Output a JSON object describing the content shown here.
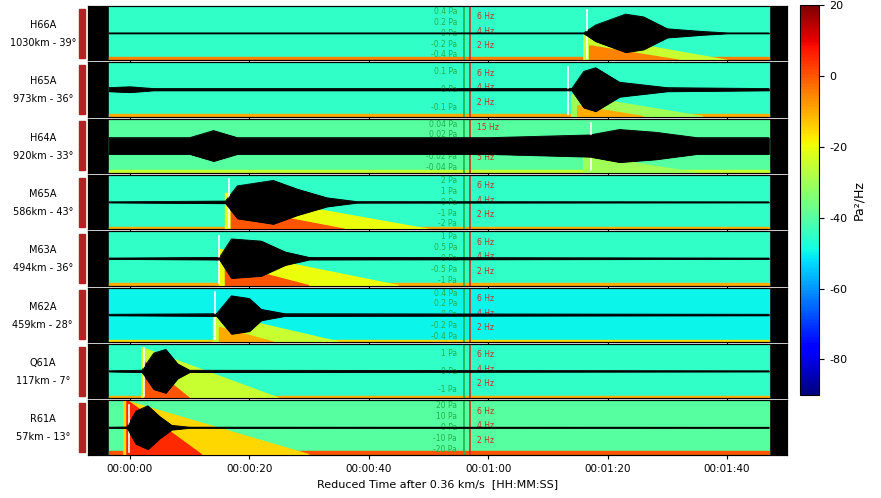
{
  "chart_data": {
    "type": "spectrogram_stack",
    "xlabel": "Reduced Time after 0.36 km/s  [HH:MM:SS]",
    "xlim": [
      -7,
      110
    ],
    "xticks": [
      {
        "value": 0,
        "label": "00:00:00"
      },
      {
        "value": 20,
        "label": "00:00:20"
      },
      {
        "value": 40,
        "label": "00:00:40"
      },
      {
        "value": 60,
        "label": "00:01:00"
      },
      {
        "value": 80,
        "label": "00:01:20"
      },
      {
        "value": 100,
        "label": "00:01:40"
      }
    ],
    "tick_labels": "x",
    "data_window": [
      -3.5,
      107
    ],
    "reference_lines": [
      {
        "time": 56,
        "color": "#22b14c"
      },
      {
        "time": 57,
        "color": "#d03020"
      }
    ],
    "colorbar": {
      "label": "Pa²/Hz",
      "range": [
        -90,
        20
      ],
      "ticks": [
        -80,
        -60,
        -40,
        -20,
        0,
        20
      ]
    },
    "panels": [
      {
        "station": "H66A",
        "distance": "1030km - 39°",
        "arrival": 76.5,
        "ylim": [
          -0.5,
          0.5
        ],
        "yticks": [
          {
            "value": 0.4,
            "label": "0.4 Pa"
          },
          {
            "value": 0.2,
            "label": "0.2 Pa"
          },
          {
            "value": 0,
            "label": "0 Pa"
          },
          {
            "value": -0.2,
            "label": "-0.2 Pa"
          },
          {
            "value": -0.4,
            "label": "-0.4 Pa"
          }
        ],
        "flim": [
          0,
          7.5
        ],
        "fticks": [
          {
            "value": 6,
            "label": "6 Hz"
          },
          {
            "value": 4,
            "label": "4 Hz"
          },
          {
            "value": 2,
            "label": "2 Hz"
          }
        ],
        "background_level": -45,
        "noise_band": {
          "f_max": 0.4,
          "level": -5
        },
        "energy": [
          {
            "t0": 76,
            "t1": 100,
            "f_max": 3.5,
            "level": -25
          },
          {
            "t0": 77,
            "t1": 92,
            "f_max": 2,
            "level": -5
          }
        ],
        "envelope": {
          "t": [
            -3.5,
            76,
            78,
            83,
            86,
            90,
            96,
            100,
            107
          ],
          "values": [
            0.005,
            0.005,
            0.15,
            0.35,
            0.3,
            0.08,
            0.03,
            0.005,
            0.005
          ]
        }
      },
      {
        "station": "H65A",
        "distance": "973km - 36°",
        "arrival": 73.3,
        "ylim": [
          -0.15,
          0.15
        ],
        "yticks": [
          {
            "value": 0.1,
            "label": "0.1 Pa"
          },
          {
            "value": 0,
            "label": "0 Pa"
          },
          {
            "value": -0.1,
            "label": "-0.1 Pa"
          }
        ],
        "flim": [
          0,
          7.5
        ],
        "fticks": [
          {
            "value": 6,
            "label": "6 Hz"
          },
          {
            "value": 4,
            "label": "4 Hz"
          },
          {
            "value": 2,
            "label": "2 Hz"
          }
        ],
        "background_level": -45,
        "noise_band": {
          "f_max": 0.3,
          "level": -10
        },
        "energy": [
          {
            "t0": 74,
            "t1": 96,
            "f_max": 3,
            "level": -30
          },
          {
            "t0": 75,
            "t1": 86,
            "f_max": 1.5,
            "level": -10
          }
        ],
        "envelope": {
          "t": [
            -3.5,
            0,
            4,
            74,
            76,
            78,
            82,
            90,
            107
          ],
          "values": [
            0.01,
            0.015,
            0.005,
            0.005,
            0.1,
            0.12,
            0.04,
            0.01,
            0.005
          ]
        }
      },
      {
        "station": "H64A",
        "distance": "920km - 33°",
        "arrival": 77.2,
        "ylim": [
          -0.05,
          0.05
        ],
        "yticks": [
          {
            "value": 0.04,
            "label": "0.04 Pa"
          },
          {
            "value": 0.02,
            "label": "0.02 Pa"
          },
          {
            "value": 0,
            "label": "0 Pa"
          },
          {
            "value": -0.02,
            "label": "-0.02 Pa"
          },
          {
            "value": -0.04,
            "label": "-0.04 Pa"
          }
        ],
        "flim": [
          0,
          18
        ],
        "fticks": [
          {
            "value": 15,
            "label": "15 Hz"
          },
          {
            "value": 10,
            "label": "10 Hz"
          },
          {
            "value": 5,
            "label": "5 Hz"
          }
        ],
        "background_level": -40,
        "noise_band": {
          "f_max": 1,
          "level": -25
        },
        "energy": [
          {
            "t0": 76,
            "t1": 95,
            "f_max": 6,
            "level": -30
          }
        ],
        "envelope": {
          "t": [
            -3.5,
            10,
            14,
            18,
            60,
            77,
            82,
            88,
            95,
            107
          ],
          "values": [
            0.015,
            0.015,
            0.028,
            0.015,
            0.015,
            0.02,
            0.03,
            0.025,
            0.015,
            0.015
          ]
        }
      },
      {
        "station": "M65A",
        "distance": "586km - 43°",
        "arrival": 16.6,
        "ylim": [
          -2.5,
          2.5
        ],
        "yticks": [
          {
            "value": 2,
            "label": "2 Pa"
          },
          {
            "value": 1,
            "label": "1 Pa"
          },
          {
            "value": 0,
            "label": "0 Pa"
          },
          {
            "value": -1,
            "label": "-1 Pa"
          },
          {
            "value": -2,
            "label": "-2 Pa"
          }
        ],
        "flim": [
          0,
          7.5
        ],
        "fticks": [
          {
            "value": 6,
            "label": "6 Hz"
          },
          {
            "value": 4,
            "label": "4 Hz"
          },
          {
            "value": 2,
            "label": "2 Hz"
          }
        ],
        "background_level": -45,
        "noise_band": {
          "f_max": 0.3,
          "level": -10
        },
        "energy": [
          {
            "t0": 16,
            "t1": 50,
            "f_max": 5,
            "level": -20
          },
          {
            "t0": 17,
            "t1": 36,
            "f_max": 3,
            "level": 0
          }
        ],
        "envelope": {
          "t": [
            -3.5,
            16,
            18,
            24,
            28,
            33,
            38,
            107
          ],
          "values": [
            0.03,
            0.1,
            1.5,
            2,
            1.2,
            0.4,
            0.05,
            0.03
          ]
        }
      },
      {
        "station": "M63A",
        "distance": "494km - 36°",
        "arrival": 15,
        "ylim": [
          -1.25,
          1.25
        ],
        "yticks": [
          {
            "value": 1,
            "label": "1 Pa"
          },
          {
            "value": 0.5,
            "label": "0.5 Pa"
          },
          {
            "value": 0,
            "label": "0 Pa"
          },
          {
            "value": -0.5,
            "label": "-0.5 Pa"
          },
          {
            "value": -1,
            "label": "-1 Pa"
          }
        ],
        "flim": [
          0,
          7.5
        ],
        "fticks": [
          {
            "value": 6,
            "label": "6 Hz"
          },
          {
            "value": 4,
            "label": "4 Hz"
          },
          {
            "value": 2,
            "label": "2 Hz"
          }
        ],
        "background_level": -45,
        "noise_band": {
          "f_max": 0.3,
          "level": -10
        },
        "energy": [
          {
            "t0": 15,
            "t1": 45,
            "f_max": 5,
            "level": -20
          },
          {
            "t0": 16,
            "t1": 30,
            "f_max": 3,
            "level": 0
          }
        ],
        "envelope": {
          "t": [
            -3.5,
            15,
            17,
            22,
            26,
            30,
            107
          ],
          "values": [
            0.02,
            0.05,
            0.9,
            0.8,
            0.3,
            0.05,
            0.02
          ]
        }
      },
      {
        "station": "M62A",
        "distance": "459km - 28°",
        "arrival": 14.3,
        "ylim": [
          -0.5,
          0.5
        ],
        "yticks": [
          {
            "value": 0.4,
            "label": "0.4 Pa"
          },
          {
            "value": 0.2,
            "label": "0.2 Pa"
          },
          {
            "value": 0,
            "label": "0 Pa"
          },
          {
            "value": -0.2,
            "label": "-0.2 Pa"
          },
          {
            "value": -0.4,
            "label": "-0.4 Pa"
          }
        ],
        "flim": [
          0,
          7.5
        ],
        "fticks": [
          {
            "value": 6,
            "label": "6 Hz"
          },
          {
            "value": 4,
            "label": "4 Hz"
          },
          {
            "value": 2,
            "label": "2 Hz"
          }
        ],
        "background_level": -50,
        "noise_band": {
          "f_max": 0.3,
          "level": -15
        },
        "energy": [
          {
            "t0": 14,
            "t1": 35,
            "f_max": 4,
            "level": -25
          },
          {
            "t0": 15,
            "t1": 24,
            "f_max": 2,
            "level": -10
          }
        ],
        "envelope": {
          "t": [
            -3.5,
            14.5,
            17,
            20,
            22,
            26,
            107
          ],
          "values": [
            0.01,
            0.02,
            0.35,
            0.3,
            0.1,
            0.02,
            0.01
          ]
        }
      },
      {
        "station": "Q61A",
        "distance": "117km - 7°",
        "arrival": 2.3,
        "ylim": [
          -1.5,
          1.5
        ],
        "yticks": [
          {
            "value": 1,
            "label": "1 Pa"
          },
          {
            "value": 0,
            "label": "0 Pa"
          },
          {
            "value": -1,
            "label": "-1 Pa"
          }
        ],
        "flim": [
          0,
          7.5
        ],
        "fticks": [
          {
            "value": 6,
            "label": "6 Hz"
          },
          {
            "value": 4,
            "label": "4 Hz"
          },
          {
            "value": 2,
            "label": "2 Hz"
          }
        ],
        "background_level": -45,
        "noise_band": {
          "f_max": 0.3,
          "level": -10
        },
        "energy": [
          {
            "t0": 2,
            "t1": 25,
            "f_max": 7,
            "level": -25
          },
          {
            "t0": 2.5,
            "t1": 10,
            "f_max": 5,
            "level": 0
          }
        ],
        "envelope": {
          "t": [
            -3.5,
            2,
            4,
            6,
            8,
            10,
            107
          ],
          "values": [
            0.02,
            0.05,
            1.0,
            1.2,
            0.4,
            0.05,
            0.02
          ]
        }
      },
      {
        "station": "R61A",
        "distance": "57km - 13°",
        "arrival": -0.2,
        "ylim": [
          -25,
          25
        ],
        "yticks": [
          {
            "value": 20,
            "label": "20 Pa"
          },
          {
            "value": 10,
            "label": "10 Pa"
          },
          {
            "value": 0,
            "label": "0 Pa"
          },
          {
            "value": -10,
            "label": "-10 Pa"
          },
          {
            "value": -20,
            "label": "-20 Pa"
          }
        ],
        "flim": [
          0,
          7.5
        ],
        "fticks": [
          {
            "value": 6,
            "label": "6 Hz"
          },
          {
            "value": 4,
            "label": "4 Hz"
          },
          {
            "value": 2,
            "label": "2 Hz"
          }
        ],
        "background_level": -40,
        "noise_band": {
          "f_max": 0.5,
          "level": 0
        },
        "energy": [
          {
            "t0": -1,
            "t1": 30,
            "f_max": 7.5,
            "level": -15
          },
          {
            "t0": -0.5,
            "t1": 12,
            "f_max": 7.5,
            "level": 5
          }
        ],
        "envelope": {
          "t": [
            -3.5,
            -0.5,
            1,
            3,
            5,
            7,
            10,
            107
          ],
          "values": [
            0.3,
            0.5,
            15,
            20,
            10,
            2,
            0.3,
            0.2
          ]
        }
      }
    ]
  }
}
